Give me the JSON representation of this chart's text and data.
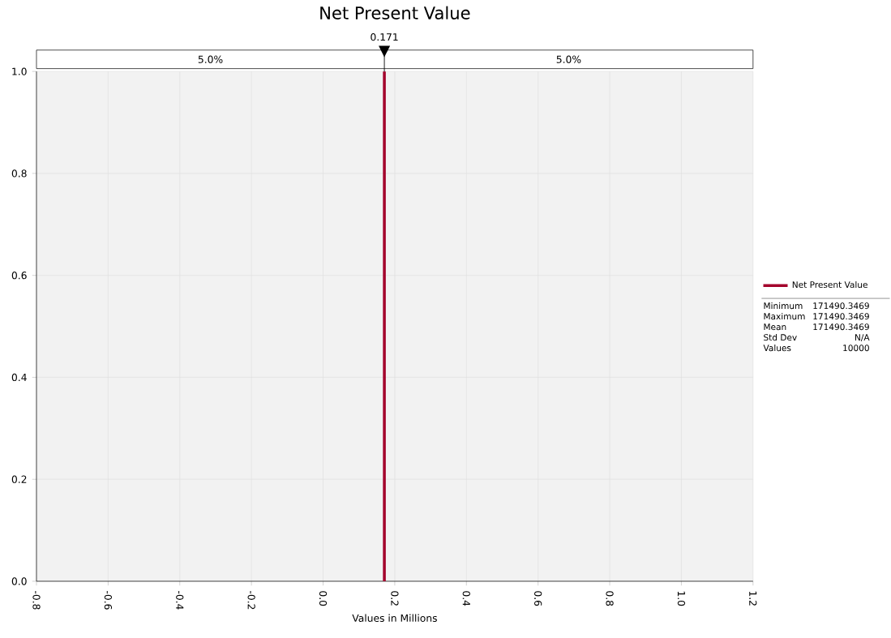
{
  "chart_data": {
    "type": "line",
    "title": "Net Present Value",
    "xlabel": "Values in Millions",
    "series": [
      {
        "name": "Net Present Value",
        "color": "#a3002b",
        "x": [
          0.171,
          0.171
        ],
        "values": [
          0,
          1
        ]
      }
    ],
    "xlim": [
      -0.8,
      1.2
    ],
    "xticks": [
      -0.8,
      -0.6,
      -0.4,
      -0.2,
      {
        "value": 0,
        "label": "0.0"
      },
      0.2,
      0.4,
      0.6,
      0.8,
      {
        "value": 1,
        "label": "1.0"
      },
      1.2
    ],
    "ylim": [
      0,
      1.0
    ],
    "yticks": [
      {
        "value": 0,
        "label": "0.0"
      },
      0.2,
      0.4,
      0.6,
      0.8,
      {
        "value": 1,
        "label": "1.0"
      }
    ],
    "ref_lines": [
      {
        "axis": "x",
        "value": 0.171,
        "label": "0.171",
        "color": "#000000"
      }
    ],
    "annotations": [
      "5.0%",
      "5.0%",
      "Minimum",
      "171490.3469",
      "Maximum",
      "171490.3469",
      "Mean",
      "171490.3469",
      "Std Dev",
      "N/A",
      "Values",
      "10000"
    ],
    "grid": true,
    "legend": "right",
    "marker": "none",
    "line_style": "solid"
  }
}
